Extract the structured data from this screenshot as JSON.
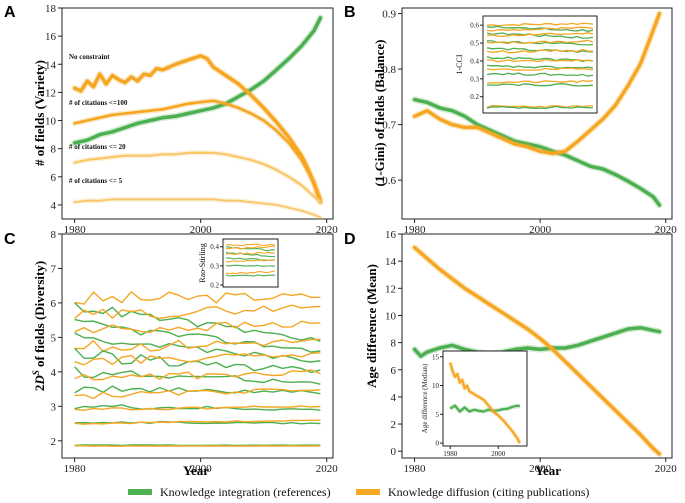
{
  "colors": {
    "green": "#4caf50",
    "orange": "#f5a623",
    "orange_light": "#f9c66a"
  },
  "legend": {
    "integration_label": "Knowledge integration (references)",
    "diffusion_label": "Knowledge diffusion (citing publications)"
  },
  "chart_data": [
    {
      "panel": "A",
      "type": "line",
      "xlabel": "",
      "ylabel": "# of fields (Variety)",
      "xlim": [
        1978,
        2021
      ],
      "ylim": [
        3,
        18
      ],
      "xticks": [
        "1980",
        "2000",
        "2020"
      ],
      "yticks": [
        "4",
        "6",
        "8",
        "10",
        "12",
        "14",
        "16",
        "18"
      ],
      "annotations": [
        "No constraint",
        "# of citations <=100",
        "# of citations <= 20",
        "# of citations <= 5"
      ],
      "series": [
        {
          "name": "Knowledge integration (references)",
          "color": "green",
          "width": 3.5,
          "x": [
            1980,
            1982,
            1984,
            1986,
            1988,
            1990,
            1992,
            1994,
            1996,
            1998,
            2000,
            2002,
            2004,
            2006,
            2008,
            2010,
            2012,
            2014,
            2016,
            2018,
            2019
          ],
          "y": [
            8.4,
            8.6,
            9.0,
            9.2,
            9.5,
            9.8,
            10.0,
            10.2,
            10.3,
            10.5,
            10.7,
            10.9,
            11.2,
            11.7,
            12.2,
            12.8,
            13.6,
            14.4,
            15.3,
            16.4,
            17.3
          ]
        },
        {
          "name": "No constraint (citing)",
          "color": "orange",
          "width": 3.5,
          "x": [
            1980,
            1981,
            1982,
            1983,
            1984,
            1985,
            1986,
            1987,
            1988,
            1989,
            1990,
            1991,
            1992,
            1993,
            1994,
            1996,
            1998,
            2000,
            2001,
            2002,
            2004,
            2006,
            2008,
            2010,
            2012,
            2014,
            2016,
            2017,
            2018,
            2019
          ],
          "y": [
            12.3,
            12.1,
            12.8,
            12.4,
            13.3,
            12.6,
            13.2,
            12.9,
            12.7,
            13.1,
            12.8,
            13.3,
            13.2,
            13.7,
            13.6,
            14.0,
            14.3,
            14.6,
            14.4,
            13.8,
            13.2,
            12.6,
            11.8,
            10.9,
            9.9,
            8.8,
            7.5,
            6.6,
            5.5,
            4.2
          ]
        },
        {
          "name": "# of citations <=100 (citing)",
          "color": "orange",
          "width": 2.6,
          "x": [
            1980,
            1982,
            1984,
            1986,
            1988,
            1990,
            1992,
            1994,
            1996,
            1998,
            2000,
            2002,
            2004,
            2006,
            2008,
            2010,
            2012,
            2014,
            2016,
            2018,
            2019
          ],
          "y": [
            9.8,
            10.0,
            10.2,
            10.4,
            10.5,
            10.6,
            10.7,
            10.8,
            11.0,
            11.2,
            11.3,
            11.4,
            11.2,
            10.9,
            10.5,
            10.0,
            9.3,
            8.4,
            7.2,
            5.6,
            4.4
          ]
        },
        {
          "name": "# of citations <= 20 (citing)",
          "color": "orange_light",
          "width": 2.2,
          "x": [
            1980,
            1982,
            1984,
            1986,
            1988,
            1990,
            1992,
            1994,
            1996,
            1998,
            2000,
            2002,
            2004,
            2006,
            2008,
            2010,
            2012,
            2014,
            2016,
            2018,
            2019
          ],
          "y": [
            7.0,
            7.2,
            7.3,
            7.4,
            7.5,
            7.5,
            7.5,
            7.6,
            7.6,
            7.7,
            7.7,
            7.7,
            7.6,
            7.4,
            7.2,
            6.9,
            6.5,
            6.0,
            5.4,
            4.6,
            4.2
          ]
        },
        {
          "name": "# of citations <= 5 (citing)",
          "color": "orange_light",
          "width": 1.8,
          "x": [
            1980,
            1982,
            1984,
            1986,
            1988,
            1990,
            1992,
            1994,
            1996,
            1998,
            2000,
            2002,
            2004,
            2006,
            2008,
            2010,
            2012,
            2014,
            2016,
            2018,
            2019
          ],
          "y": [
            4.2,
            4.3,
            4.3,
            4.4,
            4.4,
            4.4,
            4.4,
            4.4,
            4.4,
            4.4,
            4.4,
            4.4,
            4.3,
            4.3,
            4.2,
            4.1,
            4.0,
            3.8,
            3.6,
            3.3,
            3.1
          ]
        }
      ]
    },
    {
      "panel": "B",
      "type": "line",
      "xlabel": "",
      "ylabel": "(1-Gini) of fields (Balance)",
      "xlim": [
        1978,
        2021
      ],
      "ylim": [
        0.53,
        0.91
      ],
      "xticks": [
        "1980",
        "2000",
        "2020"
      ],
      "yticks": [
        "0.6",
        "0.7",
        "0.8",
        "0.9"
      ],
      "series": [
        {
          "name": "Knowledge integration (references)",
          "color": "green",
          "width": 3.5,
          "x": [
            1980,
            1982,
            1984,
            1986,
            1988,
            1990,
            1992,
            1994,
            1996,
            1998,
            2000,
            2002,
            2004,
            2006,
            2008,
            2010,
            2012,
            2014,
            2016,
            2018,
            2019
          ],
          "y": [
            0.745,
            0.74,
            0.73,
            0.725,
            0.715,
            0.7,
            0.69,
            0.68,
            0.67,
            0.665,
            0.66,
            0.652,
            0.645,
            0.635,
            0.625,
            0.62,
            0.61,
            0.598,
            0.585,
            0.57,
            0.555
          ]
        },
        {
          "name": "Knowledge diffusion (citing publications)",
          "color": "orange",
          "width": 3.5,
          "x": [
            1980,
            1982,
            1984,
            1986,
            1988,
            1990,
            1992,
            1994,
            1996,
            1998,
            2000,
            2002,
            2004,
            2006,
            2008,
            2010,
            2012,
            2014,
            2016,
            2017,
            2018,
            2019
          ],
          "y": [
            0.715,
            0.725,
            0.71,
            0.7,
            0.695,
            0.695,
            0.685,
            0.675,
            0.665,
            0.66,
            0.652,
            0.648,
            0.652,
            0.67,
            0.69,
            0.71,
            0.735,
            0.77,
            0.81,
            0.84,
            0.87,
            0.9
          ]
        }
      ],
      "inset": {
        "ylabel": "1-CCI",
        "ylim": [
          0.12,
          0.64
        ],
        "yticks": [
          "0.2",
          "0.3",
          "0.4",
          "0.5",
          "0.6"
        ],
        "series": [
          {
            "color": "orange",
            "y": [
              0.6,
              0.61
            ]
          },
          {
            "color": "green",
            "y": [
              0.59,
              0.57
            ]
          },
          {
            "color": "orange",
            "y": [
              0.57,
              0.585
            ]
          },
          {
            "color": "green",
            "y": [
              0.555,
              0.53
            ]
          },
          {
            "color": "orange",
            "y": [
              0.54,
              0.555
            ]
          },
          {
            "color": "green",
            "y": [
              0.51,
              0.49
            ]
          },
          {
            "color": "orange",
            "y": [
              0.5,
              0.51
            ]
          },
          {
            "color": "green",
            "y": [
              0.47,
              0.45
            ]
          },
          {
            "color": "orange",
            "y": [
              0.45,
              0.46
            ]
          },
          {
            "color": "green",
            "y": [
              0.42,
              0.4
            ]
          },
          {
            "color": "orange",
            "y": [
              0.4,
              0.405
            ]
          },
          {
            "color": "green",
            "y": [
              0.37,
              0.36
            ]
          },
          {
            "color": "orange",
            "y": [
              0.35,
              0.355
            ]
          },
          {
            "color": "green",
            "y": [
              0.33,
              0.32
            ]
          },
          {
            "color": "orange",
            "y": [
              0.28,
              0.285
            ]
          },
          {
            "color": "green",
            "y": [
              0.27,
              0.265
            ]
          },
          {
            "color": "orange",
            "y": [
              0.145,
              0.145
            ]
          },
          {
            "color": "green",
            "y": [
              0.14,
              0.14
            ]
          }
        ]
      }
    },
    {
      "panel": "C",
      "type": "line",
      "xlabel": "Year",
      "ylabel": "2D^S of fields (Diversity)",
      "xlim": [
        1978,
        2021
      ],
      "ylim": [
        1.5,
        8
      ],
      "xticks": [
        "1980",
        "2000",
        "2020"
      ],
      "yticks": [
        "2",
        "3",
        "4",
        "5",
        "6",
        "7",
        "8"
      ],
      "series": [
        {
          "color": "orange",
          "y0": 6.1,
          "y1": 6.2,
          "jitter": 0.25
        },
        {
          "color": "green",
          "y0": 5.9,
          "y1": 4.9,
          "jitter": 0.15
        },
        {
          "color": "orange",
          "y0": 5.6,
          "y1": 5.9,
          "jitter": 0.2
        },
        {
          "color": "green",
          "y0": 5.4,
          "y1": 4.6,
          "jitter": 0.15
        },
        {
          "color": "orange",
          "y0": 5.2,
          "y1": 5.4,
          "jitter": 0.2
        },
        {
          "color": "green",
          "y0": 5.0,
          "y1": 4.3,
          "jitter": 0.15
        },
        {
          "color": "orange",
          "y0": 4.7,
          "y1": 4.9,
          "jitter": 0.2
        },
        {
          "color": "green",
          "y0": 4.5,
          "y1": 4.0,
          "jitter": 0.2
        },
        {
          "color": "orange",
          "y0": 4.3,
          "y1": 4.5,
          "jitter": 0.15
        },
        {
          "color": "green",
          "y0": 4.0,
          "y1": 3.7,
          "jitter": 0.15
        },
        {
          "color": "orange",
          "y0": 3.8,
          "y1": 4.0,
          "jitter": 0.15
        },
        {
          "color": "green",
          "y0": 3.5,
          "y1": 3.4,
          "jitter": 0.12
        },
        {
          "color": "orange",
          "y0": 3.3,
          "y1": 3.5,
          "jitter": 0.1
        },
        {
          "color": "green",
          "y0": 3.0,
          "y1": 2.9,
          "jitter": 0.08
        },
        {
          "color": "orange",
          "y0": 2.9,
          "y1": 3.0,
          "jitter": 0.06
        },
        {
          "color": "green",
          "y0": 2.55,
          "y1": 2.5,
          "jitter": 0.04
        },
        {
          "color": "orange",
          "y0": 2.5,
          "y1": 2.6,
          "jitter": 0.03
        },
        {
          "color": "green",
          "y0": 1.87,
          "y1": 1.87,
          "jitter": 0.01
        },
        {
          "color": "orange",
          "y0": 1.85,
          "y1": 1.85,
          "jitter": 0.01
        }
      ],
      "inset": {
        "ylabel": "Rao-Stirling",
        "ylim": [
          0.2,
          0.43
        ],
        "yticks": [
          "0.2",
          "0.3",
          "0.4"
        ],
        "series": [
          {
            "color": "orange",
            "y": [
              0.41,
              0.41
            ]
          },
          {
            "color": "green",
            "y": [
              0.4,
              0.38
            ]
          },
          {
            "color": "orange",
            "y": [
              0.39,
              0.4
            ]
          },
          {
            "color": "green",
            "y": [
              0.37,
              0.35
            ]
          },
          {
            "color": "orange",
            "y": [
              0.36,
              0.37
            ]
          },
          {
            "color": "green",
            "y": [
              0.34,
              0.33
            ]
          },
          {
            "color": "orange",
            "y": [
              0.32,
              0.33
            ]
          },
          {
            "color": "green",
            "y": [
              0.3,
              0.3
            ]
          },
          {
            "color": "orange",
            "y": [
              0.26,
              0.27
            ]
          },
          {
            "color": "green",
            "y": [
              0.25,
              0.25
            ]
          }
        ]
      }
    },
    {
      "panel": "D",
      "type": "line",
      "xlabel": "Year",
      "ylabel": "Age difference (Mean)",
      "xlim": [
        1978,
        2021
      ],
      "ylim": [
        -0.5,
        16
      ],
      "xticks": [
        "1980",
        "2000",
        "2020"
      ],
      "yticks": [
        "0",
        "2",
        "4",
        "6",
        "8",
        "10",
        "12",
        "14",
        "16"
      ],
      "series": [
        {
          "name": "Knowledge integration (references)",
          "color": "green",
          "width": 3.5,
          "x": [
            1980,
            1981,
            1982,
            1984,
            1986,
            1988,
            1990,
            1992,
            1994,
            1996,
            1998,
            2000,
            2002,
            2004,
            2006,
            2008,
            2010,
            2012,
            2014,
            2016,
            2018,
            2019
          ],
          "y": [
            7.5,
            7.0,
            7.3,
            7.6,
            7.8,
            7.5,
            7.3,
            7.2,
            7.3,
            7.5,
            7.6,
            7.5,
            7.6,
            7.6,
            7.8,
            8.1,
            8.4,
            8.7,
            9.0,
            9.1,
            8.9,
            8.8
          ]
        },
        {
          "name": "Knowledge diffusion (citing publications)",
          "color": "orange",
          "width": 3.5,
          "x": [
            1980,
            1982,
            1984,
            1986,
            1988,
            1990,
            1992,
            1994,
            1996,
            1998,
            2000,
            2002,
            2004,
            2006,
            2008,
            2010,
            2012,
            2014,
            2016,
            2018,
            2019
          ],
          "y": [
            15.0,
            14.2,
            13.4,
            12.7,
            12.0,
            11.4,
            10.8,
            10.2,
            9.6,
            9.0,
            8.3,
            7.5,
            6.6,
            5.7,
            4.8,
            3.9,
            3.0,
            2.1,
            1.2,
            0.2,
            -0.2
          ]
        }
      ],
      "inset": {
        "ylabel": "Age difference (Median)",
        "ylim": [
          -0.5,
          16
        ],
        "yticks": [
          "0",
          "5",
          "10",
          "15"
        ],
        "xticks": [
          "1980",
          "2000"
        ],
        "series": [
          {
            "color": "green",
            "x": [
              1980,
              1982,
              1984,
              1986,
              1988,
              1990,
              1992,
              1994,
              1996,
              1998,
              2000,
              2002,
              2004,
              2006,
              2008,
              2009
            ],
            "y": [
              6.0,
              6.5,
              5.5,
              6.2,
              5.5,
              5.8,
              5.6,
              5.5,
              5.8,
              5.6,
              5.7,
              5.9,
              6.0,
              6.3,
              6.5,
              6.4
            ]
          },
          {
            "color": "orange",
            "x": [
              1980,
              1981,
              1982,
              1983,
              1984,
              1985,
              1986,
              1987,
              1988,
              1990,
              1992,
              1994,
              1996,
              1998,
              2000,
              2002,
              2004,
              2006,
              2008,
              2009
            ],
            "y": [
              14.0,
              12.5,
              11.5,
              12.0,
              10.5,
              11.0,
              9.5,
              10.0,
              9.0,
              8.5,
              8.0,
              7.5,
              6.5,
              5.5,
              4.8,
              4.0,
              3.0,
              2.0,
              0.8,
              0.0
            ]
          }
        ]
      }
    }
  ]
}
